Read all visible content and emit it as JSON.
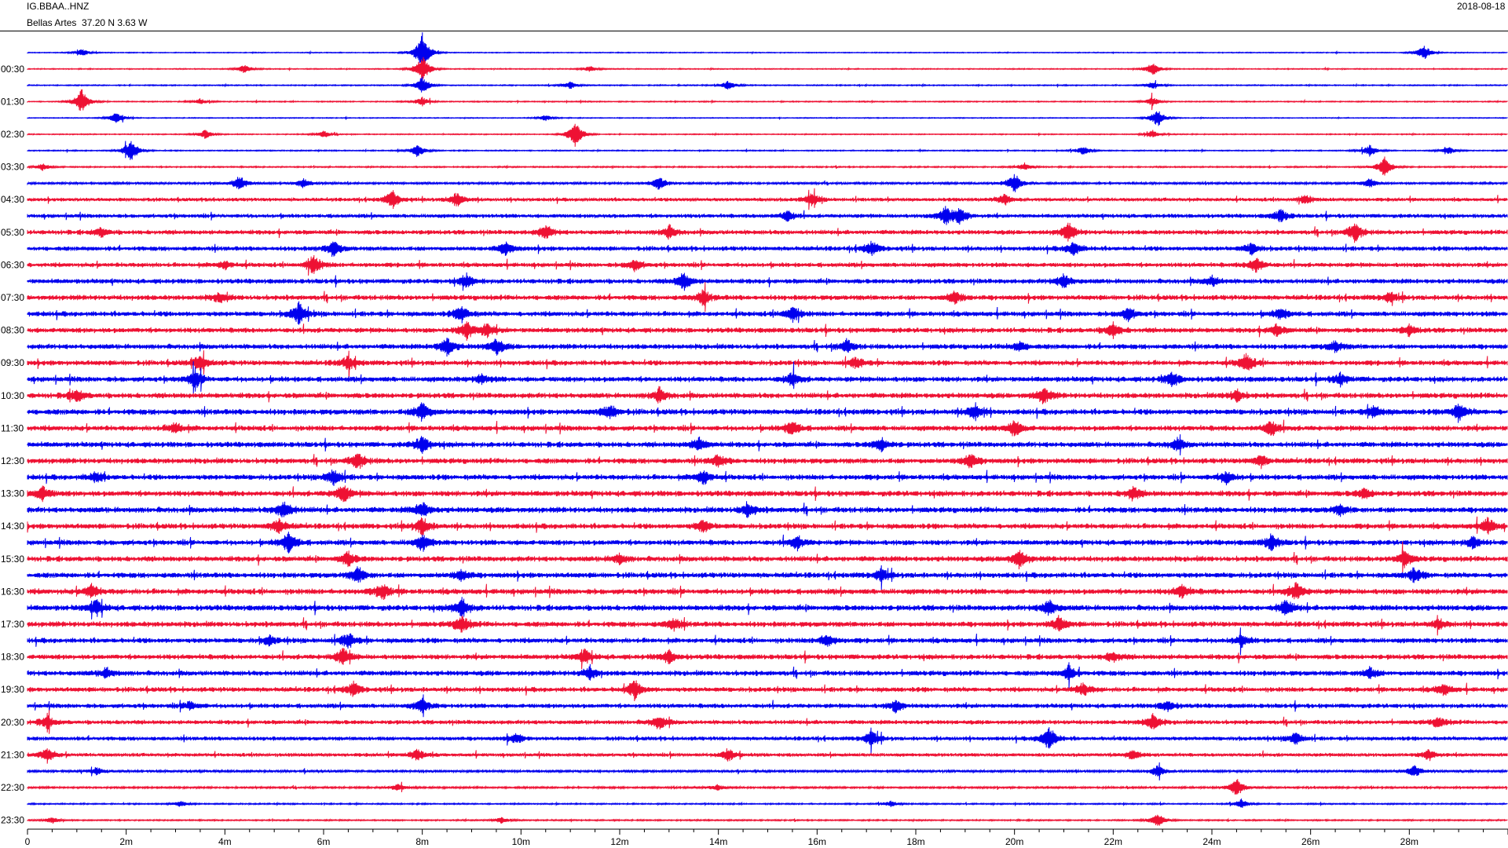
{
  "header": {
    "station": "IG.BBAA..HNZ",
    "location": "Bellas Artes  37.20 N 3.63 W",
    "date": "2018-08-18"
  },
  "chart_data": {
    "type": "line",
    "subtype": "helicorder",
    "colors": [
      "#0000ee",
      "#ee1133"
    ],
    "grid": false,
    "x": {
      "label": "",
      "unit": "minutes",
      "range": [
        0,
        30
      ],
      "ticks": [
        {
          "value": 0,
          "label": "0"
        },
        {
          "value": 2,
          "label": "2m"
        },
        {
          "value": 4,
          "label": "4m"
        },
        {
          "value": 6,
          "label": "6m"
        },
        {
          "value": 8,
          "label": "8m"
        },
        {
          "value": 10,
          "label": "10m"
        },
        {
          "value": 12,
          "label": "12m"
        },
        {
          "value": 14,
          "label": "14m"
        },
        {
          "value": 16,
          "label": "16m"
        },
        {
          "value": 18,
          "label": "18m"
        },
        {
          "value": 20,
          "label": "20m"
        },
        {
          "value": 22,
          "label": "22m"
        },
        {
          "value": 24,
          "label": "24m"
        },
        {
          "value": 26,
          "label": "26m"
        },
        {
          "value": 28,
          "label": "28m"
        }
      ]
    },
    "row_labels": [
      "00:30",
      "01:30",
      "02:30",
      "03:30",
      "04:30",
      "05:30",
      "06:30",
      "07:30",
      "08:30",
      "09:30",
      "10:30",
      "11:30",
      "12:30",
      "13:30",
      "14:30",
      "15:30",
      "16:30",
      "17:30",
      "18:30",
      "19:30",
      "20:30",
      "21:30",
      "22:30",
      "23:30"
    ],
    "rows": [
      {
        "time": "00:00",
        "noise": 0.6,
        "events": [
          [
            1.1,
            5
          ],
          [
            8.0,
            26
          ],
          [
            28.3,
            10
          ]
        ]
      },
      {
        "time": "00:30",
        "noise": 0.7,
        "events": [
          [
            8.0,
            18
          ],
          [
            4.4,
            6
          ],
          [
            11.4,
            4
          ],
          [
            22.8,
            9
          ]
        ]
      },
      {
        "time": "01:00",
        "noise": 0.8,
        "events": [
          [
            8.0,
            12
          ],
          [
            11.0,
            5
          ],
          [
            14.2,
            6
          ],
          [
            22.8,
            5
          ]
        ]
      },
      {
        "time": "01:30",
        "noise": 0.8,
        "events": [
          [
            1.1,
            17
          ],
          [
            8.0,
            6
          ],
          [
            22.8,
            6
          ],
          [
            3.5,
            4
          ]
        ]
      },
      {
        "time": "02:00",
        "noise": 0.6,
        "events": [
          [
            1.8,
            8
          ],
          [
            10.5,
            4
          ],
          [
            22.9,
            12
          ]
        ]
      },
      {
        "time": "02:30",
        "noise": 0.7,
        "events": [
          [
            11.1,
            18
          ],
          [
            3.6,
            6
          ],
          [
            6.0,
            5
          ],
          [
            22.8,
            5
          ]
        ]
      },
      {
        "time": "03:00",
        "noise": 0.8,
        "events": [
          [
            2.1,
            16
          ],
          [
            7.9,
            9
          ],
          [
            21.4,
            6
          ],
          [
            27.2,
            8
          ],
          [
            28.8,
            5
          ]
        ]
      },
      {
        "time": "03:30",
        "noise": 1.0,
        "events": [
          [
            0.3,
            5
          ],
          [
            27.5,
            13
          ],
          [
            20.2,
            5
          ]
        ]
      },
      {
        "time": "04:00",
        "noise": 1.6,
        "events": [
          [
            4.3,
            10
          ],
          [
            5.6,
            7
          ],
          [
            12.8,
            9
          ],
          [
            20.0,
            13
          ],
          [
            27.2,
            6
          ]
        ]
      },
      {
        "time": "04:30",
        "noise": 2.6,
        "events": [
          [
            7.4,
            12
          ],
          [
            8.7,
            9
          ],
          [
            15.9,
            9
          ],
          [
            19.8,
            7
          ],
          [
            25.9,
            6
          ]
        ]
      },
      {
        "time": "05:00",
        "noise": 3.0,
        "events": [
          [
            18.6,
            12
          ],
          [
            18.9,
            10
          ],
          [
            15.4,
            7
          ],
          [
            25.4,
            9
          ]
        ]
      },
      {
        "time": "05:30",
        "noise": 3.4,
        "events": [
          [
            10.5,
            9
          ],
          [
            13.0,
            8
          ],
          [
            21.1,
            11
          ],
          [
            26.9,
            12
          ],
          [
            1.5,
            6
          ]
        ]
      },
      {
        "time": "06:00",
        "noise": 3.4,
        "events": [
          [
            6.2,
            10
          ],
          [
            9.7,
            8
          ],
          [
            17.1,
            9
          ],
          [
            21.2,
            8
          ],
          [
            24.8,
            7
          ]
        ]
      },
      {
        "time": "06:30",
        "noise": 3.4,
        "events": [
          [
            5.8,
            13
          ],
          [
            24.9,
            10
          ],
          [
            12.3,
            7
          ],
          [
            4.0,
            5
          ]
        ]
      },
      {
        "time": "07:00",
        "noise": 3.6,
        "events": [
          [
            13.3,
            11
          ],
          [
            8.9,
            8
          ],
          [
            21.0,
            9
          ],
          [
            24.0,
            6
          ]
        ]
      },
      {
        "time": "07:30",
        "noise": 3.8,
        "events": [
          [
            13.7,
            9
          ],
          [
            18.8,
            8
          ],
          [
            3.9,
            6
          ],
          [
            27.6,
            6
          ]
        ]
      },
      {
        "time": "08:00",
        "noise": 3.8,
        "events": [
          [
            5.5,
            14
          ],
          [
            8.8,
            10
          ],
          [
            15.5,
            11
          ],
          [
            22.3,
            8
          ],
          [
            25.4,
            7
          ]
        ]
      },
      {
        "time": "08:30",
        "noise": 3.8,
        "events": [
          [
            8.9,
            11
          ],
          [
            9.3,
            8
          ],
          [
            22.0,
            9
          ],
          [
            25.3,
            7
          ],
          [
            28.0,
            6
          ]
        ]
      },
      {
        "time": "09:00",
        "noise": 3.8,
        "events": [
          [
            8.5,
            12
          ],
          [
            9.5,
            10
          ],
          [
            16.6,
            8
          ],
          [
            20.1,
            6
          ],
          [
            26.5,
            7
          ]
        ]
      },
      {
        "time": "09:30",
        "noise": 3.8,
        "events": [
          [
            3.5,
            11
          ],
          [
            6.5,
            9
          ],
          [
            24.7,
            12
          ],
          [
            16.8,
            7
          ]
        ]
      },
      {
        "time": "10:00",
        "noise": 4.0,
        "events": [
          [
            3.4,
            12
          ],
          [
            15.5,
            8
          ],
          [
            23.2,
            9
          ],
          [
            26.6,
            7
          ],
          [
            9.2,
            6
          ]
        ]
      },
      {
        "time": "10:30",
        "noise": 4.0,
        "events": [
          [
            1.0,
            8
          ],
          [
            12.8,
            9
          ],
          [
            20.6,
            10
          ],
          [
            24.5,
            8
          ]
        ]
      },
      {
        "time": "11:00",
        "noise": 4.2,
        "events": [
          [
            8.0,
            12
          ],
          [
            11.8,
            9
          ],
          [
            19.2,
            10
          ],
          [
            29.0,
            11
          ],
          [
            27.3,
            8
          ]
        ]
      },
      {
        "time": "11:30",
        "noise": 4.0,
        "events": [
          [
            15.5,
            9
          ],
          [
            20.0,
            11
          ],
          [
            25.2,
            10
          ],
          [
            3.0,
            7
          ]
        ]
      },
      {
        "time": "12:00",
        "noise": 4.0,
        "events": [
          [
            8.0,
            11
          ],
          [
            13.6,
            8
          ],
          [
            17.3,
            8
          ],
          [
            23.3,
            7
          ]
        ]
      },
      {
        "time": "12:30",
        "noise": 4.0,
        "events": [
          [
            6.7,
            10
          ],
          [
            14.0,
            7
          ],
          [
            19.1,
            9
          ],
          [
            25.0,
            7
          ]
        ]
      },
      {
        "time": "13:00",
        "noise": 4.0,
        "events": [
          [
            1.4,
            7
          ],
          [
            6.2,
            10
          ],
          [
            13.7,
            9
          ],
          [
            24.3,
            8
          ]
        ]
      },
      {
        "time": "13:30",
        "noise": 4.2,
        "events": [
          [
            0.3,
            9
          ],
          [
            6.4,
            11
          ],
          [
            22.4,
            8
          ],
          [
            27.1,
            6
          ]
        ]
      },
      {
        "time": "14:00",
        "noise": 4.2,
        "events": [
          [
            5.2,
            12
          ],
          [
            8.0,
            10
          ],
          [
            14.6,
            9
          ],
          [
            26.6,
            6
          ]
        ]
      },
      {
        "time": "14:30",
        "noise": 4.0,
        "events": [
          [
            5.1,
            9
          ],
          [
            8.0,
            11
          ],
          [
            13.7,
            8
          ],
          [
            29.6,
            10
          ]
        ]
      },
      {
        "time": "15:00",
        "noise": 4.0,
        "events": [
          [
            5.3,
            13
          ],
          [
            8.0,
            10
          ],
          [
            15.6,
            8
          ],
          [
            25.2,
            10
          ],
          [
            29.3,
            7
          ]
        ]
      },
      {
        "time": "15:30",
        "noise": 4.0,
        "events": [
          [
            6.5,
            9
          ],
          [
            20.1,
            11
          ],
          [
            27.9,
            10
          ],
          [
            12.0,
            6
          ]
        ]
      },
      {
        "time": "16:00",
        "noise": 4.0,
        "events": [
          [
            6.7,
            10
          ],
          [
            17.3,
            8
          ],
          [
            28.1,
            9
          ],
          [
            8.8,
            7
          ]
        ]
      },
      {
        "time": "16:30",
        "noise": 4.2,
        "events": [
          [
            1.3,
            8
          ],
          [
            7.2,
            10
          ],
          [
            23.4,
            8
          ],
          [
            25.7,
            11
          ]
        ]
      },
      {
        "time": "17:00",
        "noise": 4.2,
        "events": [
          [
            1.4,
            10
          ],
          [
            8.8,
            12
          ],
          [
            20.7,
            10
          ],
          [
            25.5,
            10
          ]
        ]
      },
      {
        "time": "17:30",
        "noise": 4.0,
        "events": [
          [
            8.8,
            11
          ],
          [
            20.9,
            9
          ],
          [
            13.1,
            7
          ],
          [
            28.6,
            6
          ]
        ]
      },
      {
        "time": "18:00",
        "noise": 3.8,
        "events": [
          [
            6.5,
            10
          ],
          [
            16.2,
            8
          ],
          [
            24.6,
            7
          ],
          [
            4.9,
            6
          ]
        ]
      },
      {
        "time": "18:30",
        "noise": 3.8,
        "events": [
          [
            6.4,
            11
          ],
          [
            11.3,
            9
          ],
          [
            13.0,
            8
          ],
          [
            22.0,
            7
          ]
        ]
      },
      {
        "time": "19:00",
        "noise": 3.8,
        "events": [
          [
            1.6,
            6
          ],
          [
            11.4,
            8
          ],
          [
            21.1,
            9
          ],
          [
            27.2,
            7
          ]
        ]
      },
      {
        "time": "19:30",
        "noise": 3.6,
        "events": [
          [
            6.6,
            9
          ],
          [
            12.3,
            12
          ],
          [
            21.4,
            8
          ],
          [
            28.7,
            7
          ]
        ]
      },
      {
        "time": "20:00",
        "noise": 3.4,
        "events": [
          [
            8.0,
            9
          ],
          [
            17.6,
            8
          ],
          [
            23.1,
            7
          ],
          [
            3.3,
            6
          ]
        ]
      },
      {
        "time": "20:30",
        "noise": 3.2,
        "events": [
          [
            0.4,
            8
          ],
          [
            12.8,
            9
          ],
          [
            22.8,
            10
          ],
          [
            28.6,
            7
          ]
        ]
      },
      {
        "time": "21:00",
        "noise": 3.0,
        "events": [
          [
            17.1,
            10
          ],
          [
            20.7,
            15
          ],
          [
            25.7,
            8
          ],
          [
            9.9,
            6
          ]
        ]
      },
      {
        "time": "21:30",
        "noise": 2.6,
        "events": [
          [
            0.4,
            10
          ],
          [
            7.9,
            8
          ],
          [
            14.2,
            9
          ],
          [
            22.4,
            7
          ],
          [
            28.4,
            7
          ]
        ]
      },
      {
        "time": "22:00",
        "noise": 1.8,
        "events": [
          [
            1.4,
            5
          ],
          [
            22.9,
            7
          ],
          [
            28.1,
            8
          ]
        ]
      },
      {
        "time": "22:30",
        "noise": 1.4,
        "events": [
          [
            24.5,
            12
          ],
          [
            7.5,
            5
          ],
          [
            14.0,
            4
          ]
        ]
      },
      {
        "time": "23:00",
        "noise": 1.0,
        "events": [
          [
            24.6,
            6
          ],
          [
            17.5,
            4
          ],
          [
            3.1,
            4
          ]
        ]
      },
      {
        "time": "23:30",
        "noise": 1.0,
        "events": [
          [
            22.9,
            10
          ],
          [
            0.5,
            4
          ],
          [
            9.6,
            4
          ]
        ]
      }
    ]
  }
}
